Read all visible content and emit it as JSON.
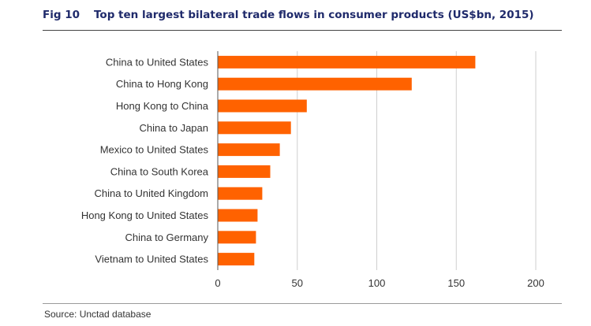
{
  "figure": {
    "number": "Fig 10",
    "title": "Top ten largest bilateral trade flows in consumer products (US$bn, 2015)",
    "source": "Source: Unctad database"
  },
  "colors": {
    "bar": "#ff6200",
    "title": "#1f2a6b",
    "grid": "#cfcfcf"
  },
  "chart_data": {
    "type": "bar",
    "orientation": "horizontal",
    "title": "Top ten largest bilateral trade flows in consumer products (US$bn, 2015)",
    "xlabel": "",
    "ylabel": "",
    "categories": [
      "China to United States",
      "China to Hong Kong",
      "Hong Kong to China",
      "China to Japan",
      "Mexico to United States",
      "China to South Korea",
      "China to United Kingdom",
      "Hong Kong to United States",
      "China to Germany",
      "Vietnam to United States"
    ],
    "values": [
      162,
      122,
      56,
      46,
      39,
      33,
      28,
      25,
      24,
      23
    ],
    "xlim": [
      0,
      200
    ],
    "ticks": [
      0,
      50,
      100,
      150,
      200
    ],
    "grid": true,
    "legend": "none"
  }
}
